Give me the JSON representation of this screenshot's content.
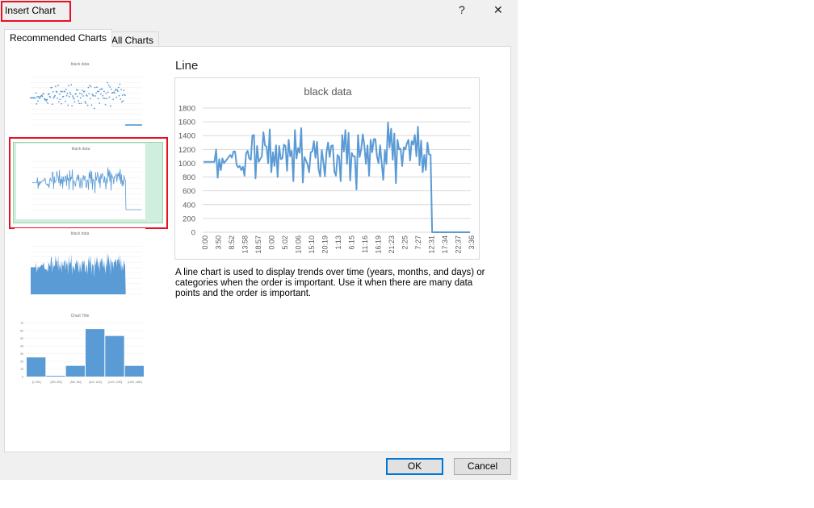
{
  "window": {
    "title": "Insert Chart",
    "help": "?",
    "close": "✕"
  },
  "tabs": [
    {
      "label": "Recommended Charts",
      "active": true
    },
    {
      "label": "All Charts",
      "active": false
    }
  ],
  "thumbnails": [
    {
      "type": "scatter",
      "title": "black data"
    },
    {
      "type": "line",
      "title": "black data",
      "selected": true
    },
    {
      "type": "area",
      "title": "black data"
    },
    {
      "type": "histogram",
      "title": "Chart Title"
    }
  ],
  "preview": {
    "heading": "Line",
    "description": "A line chart is used to display trends over time (years, months, and days) or categories when the order is important. Use it when there are many data points and the order is important."
  },
  "buttons": {
    "ok": "OK",
    "cancel": "Cancel"
  },
  "colors": {
    "series": "#5b9bd5",
    "selection": "#e81123",
    "selected_bg": "#cfeedd"
  },
  "chart_data": [
    {
      "type": "line",
      "title": "black data",
      "ylim": [
        0,
        1800
      ],
      "yticks": [
        0,
        200,
        400,
        600,
        800,
        1000,
        1200,
        1400,
        1600,
        1800
      ],
      "grid": true,
      "xtick_labels": [
        "0:00",
        "3:50",
        "8:52",
        "13:58",
        "18:57",
        "0:00",
        "5:02",
        "10:06",
        "15:10",
        "20:19",
        "1:13",
        "6:15",
        "11:16",
        "16:19",
        "21:23",
        "2:25",
        "7:27",
        "12:31",
        "17:34",
        "22:37",
        "3:36"
      ],
      "values": [
        1020,
        1020,
        1020,
        1020,
        1020,
        1020,
        1020,
        1020,
        1200,
        790,
        1060,
        900,
        1070,
        1000,
        1030,
        1060,
        1090,
        1120,
        1080,
        1170,
        1170,
        980,
        940,
        960,
        900,
        950,
        820,
        1140,
        1180,
        1070,
        1050,
        1400,
        1410,
        780,
        1250,
        1020,
        1060,
        1100,
        1450,
        1260,
        1240,
        1000,
        1490,
        870,
        1160,
        960,
        1260,
        800,
        1250,
        1060,
        1070,
        1270,
        1250,
        890,
        1340,
        1100,
        1180,
        740,
        1480,
        1070,
        1220,
        1150,
        1510,
        720,
        1090,
        1040,
        980,
        870,
        1160,
        1170,
        1320,
        1080,
        1310,
        910,
        810,
        1190,
        1020,
        810,
        1160,
        1300,
        1090,
        1250,
        1260,
        880,
        820,
        1120,
        1090,
        740,
        1410,
        1170,
        1480,
        990,
        1440,
        750,
        1150,
        1100,
        1100,
        620,
        1410,
        1090,
        1200,
        1420,
        1260,
        990,
        1260,
        820,
        1340,
        1160,
        1350,
        1350,
        1100,
        1000,
        1260,
        1000,
        760,
        1190,
        990,
        1590,
        1230,
        1500,
        1050,
        1430,
        710,
        1340,
        1200,
        1210,
        960,
        1230,
        1200,
        1290,
        1340,
        1040,
        1320,
        1270,
        1410,
        1100,
        1530,
        970,
        1330,
        870,
        1120,
        900,
        1300,
        1130,
        1120,
        0,
        0,
        0,
        0,
        0,
        0,
        0,
        0,
        0,
        0,
        0,
        0,
        0,
        0,
        0,
        0,
        0,
        0,
        0,
        0,
        0,
        0,
        0,
        0,
        0
      ]
    },
    {
      "type": "histogram",
      "title": "Chart Title",
      "categories": [
        "[0, 280]",
        "(280, 560]",
        "(560, 840]",
        "(840, 1120]",
        "(1120, 1400]",
        "(1400, 1680]"
      ],
      "values": [
        25,
        1,
        14,
        62,
        53,
        14
      ],
      "ylim": [
        0,
        70
      ]
    }
  ]
}
